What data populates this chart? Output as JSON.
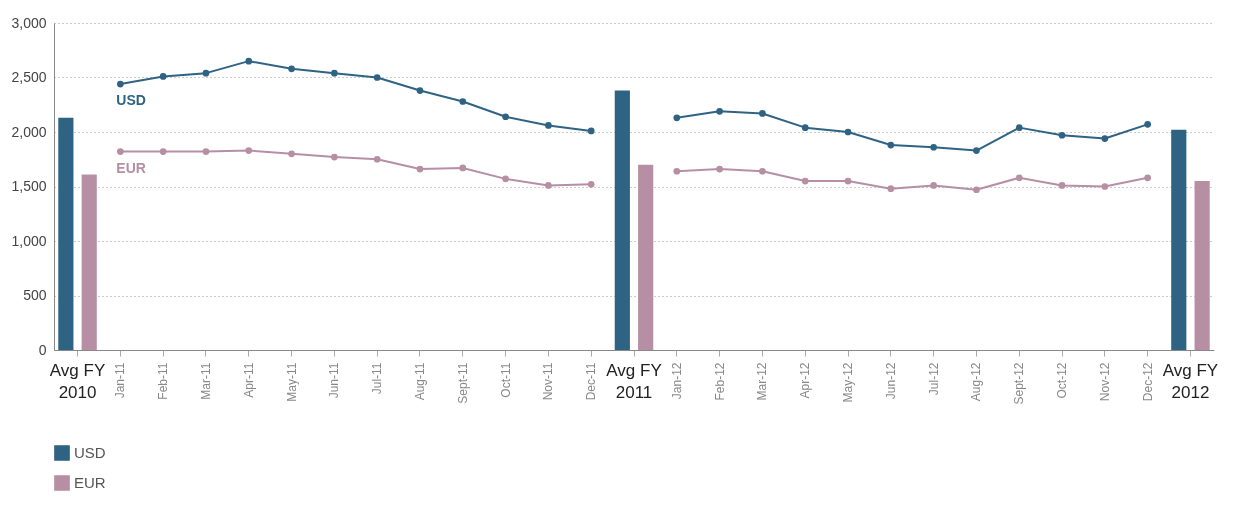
{
  "chart_data": {
    "type": "bar",
    "categories": [
      "Avg FY 2010",
      "Jan-11",
      "Feb-11",
      "Mar-11",
      "Apr-11",
      "May-11",
      "Jun-11",
      "Jul-11",
      "Aug-11",
      "Sept-11",
      "Oct-11",
      "Nov-11",
      "Dec-11",
      "Avg FY 2011",
      "Jan-12",
      "Feb-12",
      "Mar-12",
      "Apr-12",
      "May-12",
      "Jun-12",
      "Jul-12",
      "Aug-12",
      "Sept-12",
      "Oct-12",
      "Nov-12",
      "Dec-12",
      "Avg FY 2012"
    ],
    "series": [
      {
        "name": "USD",
        "color": "#2e6384",
        "values": [
          2130,
          null,
          null,
          null,
          null,
          null,
          null,
          null,
          null,
          null,
          null,
          null,
          null,
          2380,
          null,
          null,
          null,
          null,
          null,
          null,
          null,
          null,
          null,
          null,
          null,
          null,
          2020
        ]
      },
      {
        "name": "EUR",
        "color": "#b68fa5",
        "values": [
          1610,
          null,
          null,
          null,
          null,
          null,
          null,
          null,
          null,
          null,
          null,
          null,
          null,
          1700,
          null,
          null,
          null,
          null,
          null,
          null,
          null,
          null,
          null,
          null,
          null,
          null,
          1550
        ]
      },
      {
        "name": "USD",
        "type": "line",
        "color": "#2e6384",
        "values": [
          null,
          2440,
          2510,
          2540,
          2650,
          2580,
          2540,
          2500,
          2380,
          2280,
          2140,
          2060,
          2010,
          null,
          2130,
          2190,
          2170,
          2040,
          2000,
          1880,
          1860,
          1830,
          2040,
          1970,
          1940,
          2070,
          null
        ]
      },
      {
        "name": "EUR",
        "type": "line",
        "color": "#b68fa5",
        "values": [
          null,
          1820,
          1820,
          1820,
          1830,
          1800,
          1770,
          1750,
          1660,
          1670,
          1570,
          1510,
          1520,
          null,
          1640,
          1660,
          1640,
          1550,
          1550,
          1480,
          1510,
          1470,
          1580,
          1510,
          1500,
          1580,
          null
        ]
      }
    ],
    "ylim": [
      0,
      3000
    ],
    "yticks": [
      0,
      500,
      {
        "value": 1000,
        "label": "1,000"
      },
      {
        "value": 1500,
        "label": "1,500"
      },
      {
        "value": 2000,
        "label": "2,000"
      },
      {
        "value": 2500,
        "label": "2,500"
      },
      {
        "value": 3000,
        "label": "3,000"
      }
    ],
    "grid": "y",
    "legend": "bottom left",
    "marker": "circle"
  }
}
